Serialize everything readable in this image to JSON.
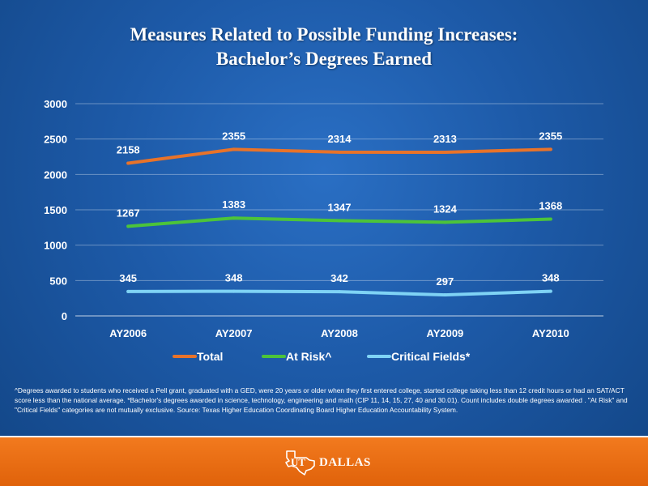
{
  "slide": {
    "title_line1": "Measures Related to Possible Funding Increases:",
    "title_line2": "Bachelor’s Degrees Earned",
    "footnote": "^Degrees awarded to students who received a Pell grant, graduated with a GED, were 20 years or older when they first entered college, started college taking less than 12 credit hours or had an SAT/ACT score less than the national average. *Bachelor's degrees awarded in science, technology, engineering and math (CIP 11, 14, 15, 27, 40 and 30.01). Count includes double degrees awarded . \"At Risk\" and \"Critical Fields\" categories are not mutually exclusive. Source: Texas Higher Education Coordinating Board Higher Education Accountability System.",
    "logo_ut": "UT",
    "logo_text": "DALLAS",
    "logo_icon": "texas-star-icon"
  },
  "colors": {
    "total": "#e8732a",
    "at_risk": "#4cc43a",
    "critical": "#7fd3f5",
    "footer": "#e8680f"
  },
  "chart_data": {
    "type": "line",
    "categories": [
      "AY2006",
      "AY2007",
      "AY2008",
      "AY2009",
      "AY2010"
    ],
    "series": [
      {
        "name": "Total",
        "values": [
          2158,
          2355,
          2314,
          2313,
          2355
        ]
      },
      {
        "name": "At Risk^",
        "values": [
          1267,
          1383,
          1347,
          1324,
          1368
        ]
      },
      {
        "name": "Critical Fields*",
        "values": [
          345,
          348,
          342,
          297,
          348
        ]
      }
    ],
    "yticks": [
      0,
      500,
      1000,
      1500,
      2000,
      2500,
      3000
    ],
    "ylim": [
      0,
      3000
    ],
    "grid": true,
    "legend": "bottom"
  }
}
